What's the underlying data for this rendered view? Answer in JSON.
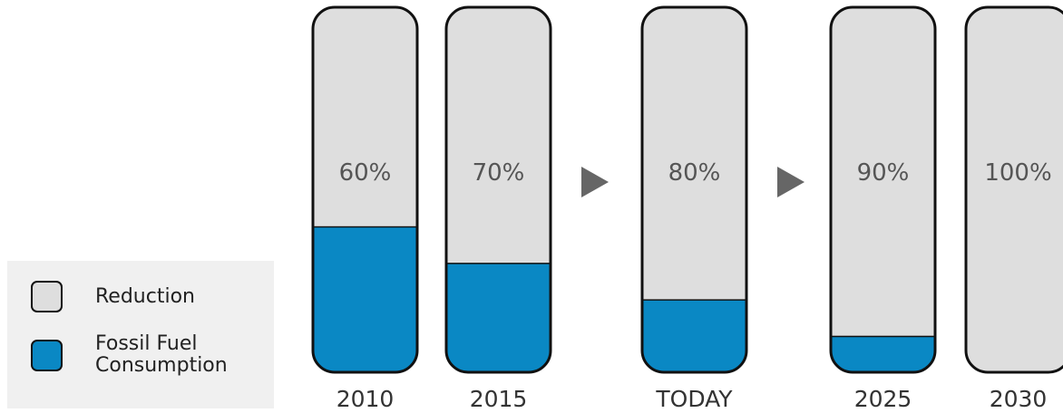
{
  "chart_data": {
    "type": "stacked-bar",
    "categories": [
      "2010",
      "2015",
      "TODAY",
      "2025",
      "2030"
    ],
    "series": [
      {
        "name": "Reduction",
        "color": "#dedede",
        "values": [
          60,
          70,
          80,
          90,
          100
        ],
        "value_labels": [
          "60%",
          "70%",
          "80%",
          "90%",
          "100%"
        ]
      },
      {
        "name": "Fossil Fuel Consumption",
        "color": "#0a88c4",
        "values": [
          40,
          30,
          20,
          10,
          0
        ]
      }
    ],
    "ylim": [
      0,
      100
    ]
  }
}
